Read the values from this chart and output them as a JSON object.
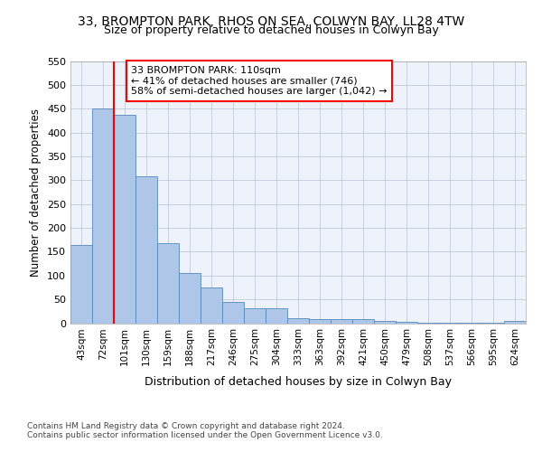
{
  "title": "33, BROMPTON PARK, RHOS ON SEA, COLWYN BAY, LL28 4TW",
  "subtitle": "Size of property relative to detached houses in Colwyn Bay",
  "xlabel": "Distribution of detached houses by size in Colwyn Bay",
  "ylabel": "Number of detached properties",
  "categories": [
    "43sqm",
    "72sqm",
    "101sqm",
    "130sqm",
    "159sqm",
    "188sqm",
    "217sqm",
    "246sqm",
    "275sqm",
    "304sqm",
    "333sqm",
    "363sqm",
    "392sqm",
    "421sqm",
    "450sqm",
    "479sqm",
    "508sqm",
    "537sqm",
    "566sqm",
    "595sqm",
    "624sqm"
  ],
  "values": [
    164,
    450,
    437,
    308,
    167,
    106,
    74,
    45,
    32,
    32,
    10,
    9,
    8,
    8,
    5,
    2,
    1,
    1,
    1,
    1,
    5
  ],
  "bar_color": "#aec6e8",
  "bar_edge_color": "#5588bb",
  "red_line_x": 2,
  "annotation_text": "33 BROMPTON PARK: 110sqm\n← 41% of detached houses are smaller (746)\n58% of semi-detached houses are larger (1,042) →",
  "annotation_box_color": "white",
  "annotation_box_edge_color": "red",
  "red_line_color": "red",
  "ylim": [
    0,
    550
  ],
  "yticks": [
    0,
    50,
    100,
    150,
    200,
    250,
    300,
    350,
    400,
    450,
    500,
    550
  ],
  "footer1": "Contains HM Land Registry data © Crown copyright and database right 2024.",
  "footer2": "Contains public sector information licensed under the Open Government Licence v3.0.",
  "bg_color": "#eef2fb",
  "grid_color": "#c0c8dd"
}
